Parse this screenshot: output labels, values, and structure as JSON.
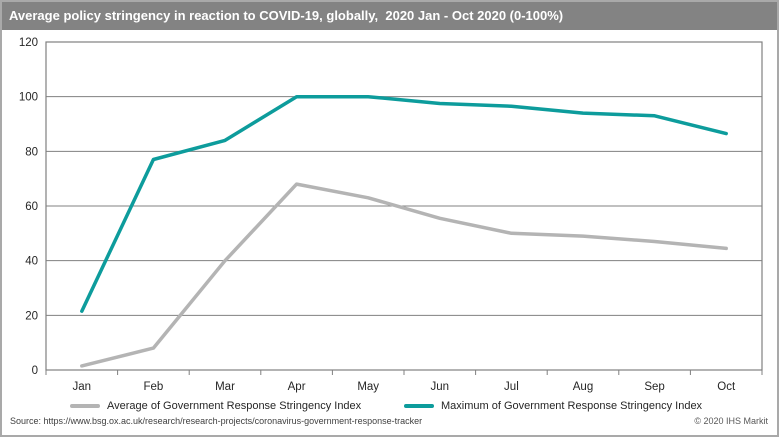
{
  "title": "Average policy stringency in reaction to COVID-19, globally,  2020 Jan - Oct 2020 (0-100%)",
  "footer": {
    "source": "Source: https://www.bsg.ox.ac.uk/research/research-projects/coronavirus-government-response-tracker",
    "copyright": "© 2020 IHS Markit"
  },
  "colors": {
    "titlebar_bg": "#838383",
    "title_text": "#ffffff",
    "grid": "#808080",
    "axis_text": "#262626",
    "average_line": "#b4b4b4",
    "maximum_line": "#0d9c9c"
  },
  "chart_data": {
    "type": "line",
    "title": "Average policy stringency in reaction to COVID-19, globally, 2020 Jan - Oct 2020 (0-100%)",
    "categories": [
      "Jan",
      "Feb",
      "Mar",
      "Apr",
      "May",
      "Jun",
      "Jul",
      "Aug",
      "Sep",
      "Oct"
    ],
    "series": [
      {
        "name": "Average of Government Response Stringency Index",
        "color": "#b4b4b4",
        "values": [
          1.5,
          8,
          40,
          68,
          63,
          55.5,
          50,
          49,
          47,
          44.5
        ]
      },
      {
        "name": "Maximum of Government Response Stringency Index",
        "color": "#0d9c9c",
        "values": [
          21.5,
          77,
          84,
          100,
          100,
          97.5,
          96.5,
          94,
          93,
          86.5
        ]
      }
    ],
    "xlabel": "",
    "ylabel": "",
    "ylim": [
      0,
      120
    ],
    "yticks": [
      0,
      20,
      40,
      60,
      80,
      100,
      120
    ],
    "grid": "horizontal",
    "legend_position": "bottom"
  }
}
